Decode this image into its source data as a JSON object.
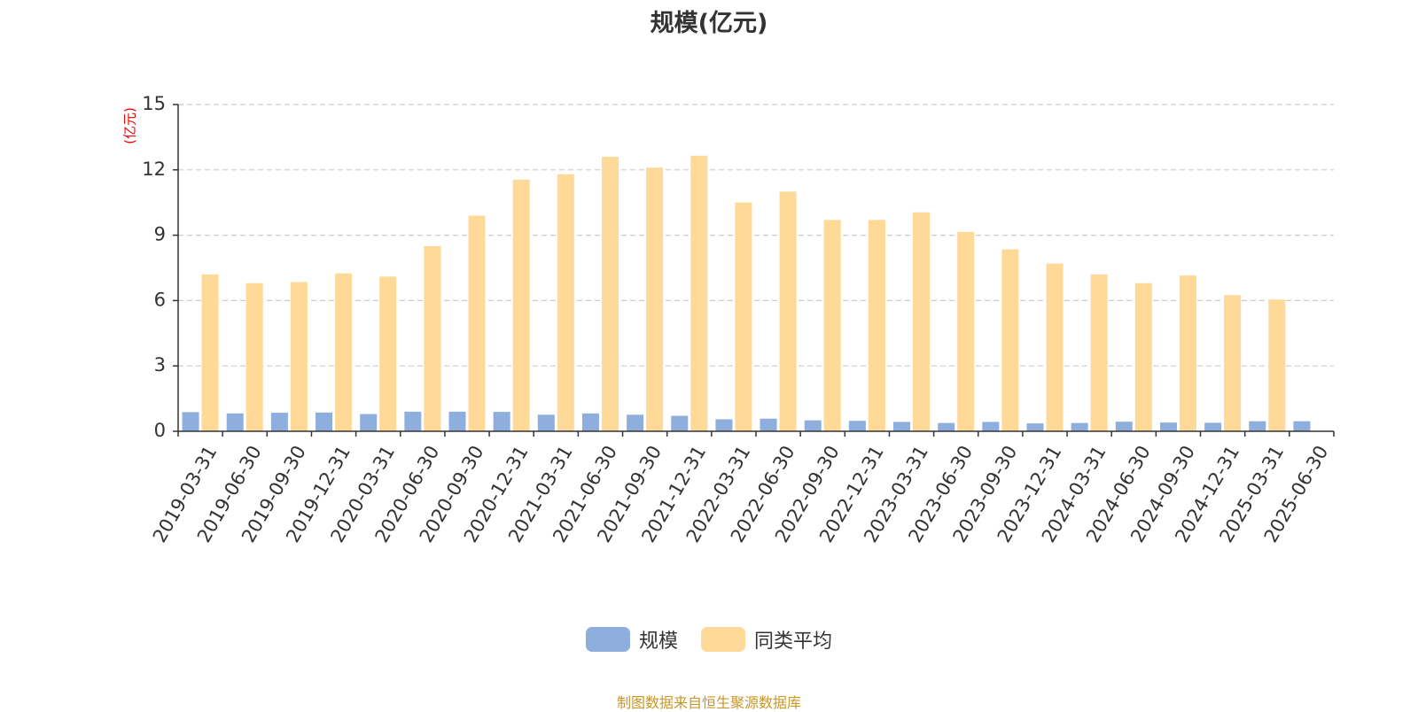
{
  "title": "规模(亿元)",
  "source_text": "制图数据来自恒生聚源数据库",
  "colors": {
    "scale": "#8eaedd",
    "average": "#fed998",
    "unit": "#ee0000",
    "grid": "#cccccc",
    "axis": "#333333"
  },
  "chart_data": {
    "type": "bar",
    "title": "规模(亿元)",
    "ylabel": "(亿元)",
    "ylim": [
      0,
      15
    ],
    "yticks": [
      "0",
      "3",
      "6",
      "9",
      "12",
      "15"
    ],
    "grid": "horizontal-dashed",
    "legend_position": "bottom",
    "categories": [
      "2019-03-31",
      "2019-06-30",
      "2019-09-30",
      "2019-12-31",
      "2020-03-31",
      "2020-06-30",
      "2020-09-30",
      "2020-12-31",
      "2021-03-31",
      "2021-06-30",
      "2021-09-30",
      "2021-12-31",
      "2022-03-31",
      "2022-06-30",
      "2022-09-30",
      "2022-12-31",
      "2023-03-31",
      "2023-06-30",
      "2023-09-30",
      "2023-12-31",
      "2024-03-31",
      "2024-06-30",
      "2024-09-30",
      "2024-12-31",
      "2025-03-31",
      "2025-06-30"
    ],
    "series": [
      {
        "name": "规模",
        "values": [
          0.88,
          0.82,
          0.85,
          0.86,
          0.79,
          0.9,
          0.9,
          0.89,
          0.76,
          0.82,
          0.76,
          0.71,
          0.55,
          0.58,
          0.5,
          0.48,
          0.43,
          0.38,
          0.43,
          0.36,
          0.38,
          0.44,
          0.4,
          0.39,
          0.46,
          0.46
        ]
      },
      {
        "name": "同类平均",
        "values": [
          7.2,
          6.8,
          6.85,
          7.25,
          7.1,
          8.5,
          9.9,
          11.55,
          11.8,
          12.6,
          12.1,
          12.65,
          10.5,
          11.0,
          9.7,
          9.7,
          10.05,
          9.15,
          8.35,
          7.7,
          7.2,
          6.8,
          7.15,
          6.25,
          6.05,
          null
        ]
      }
    ]
  }
}
